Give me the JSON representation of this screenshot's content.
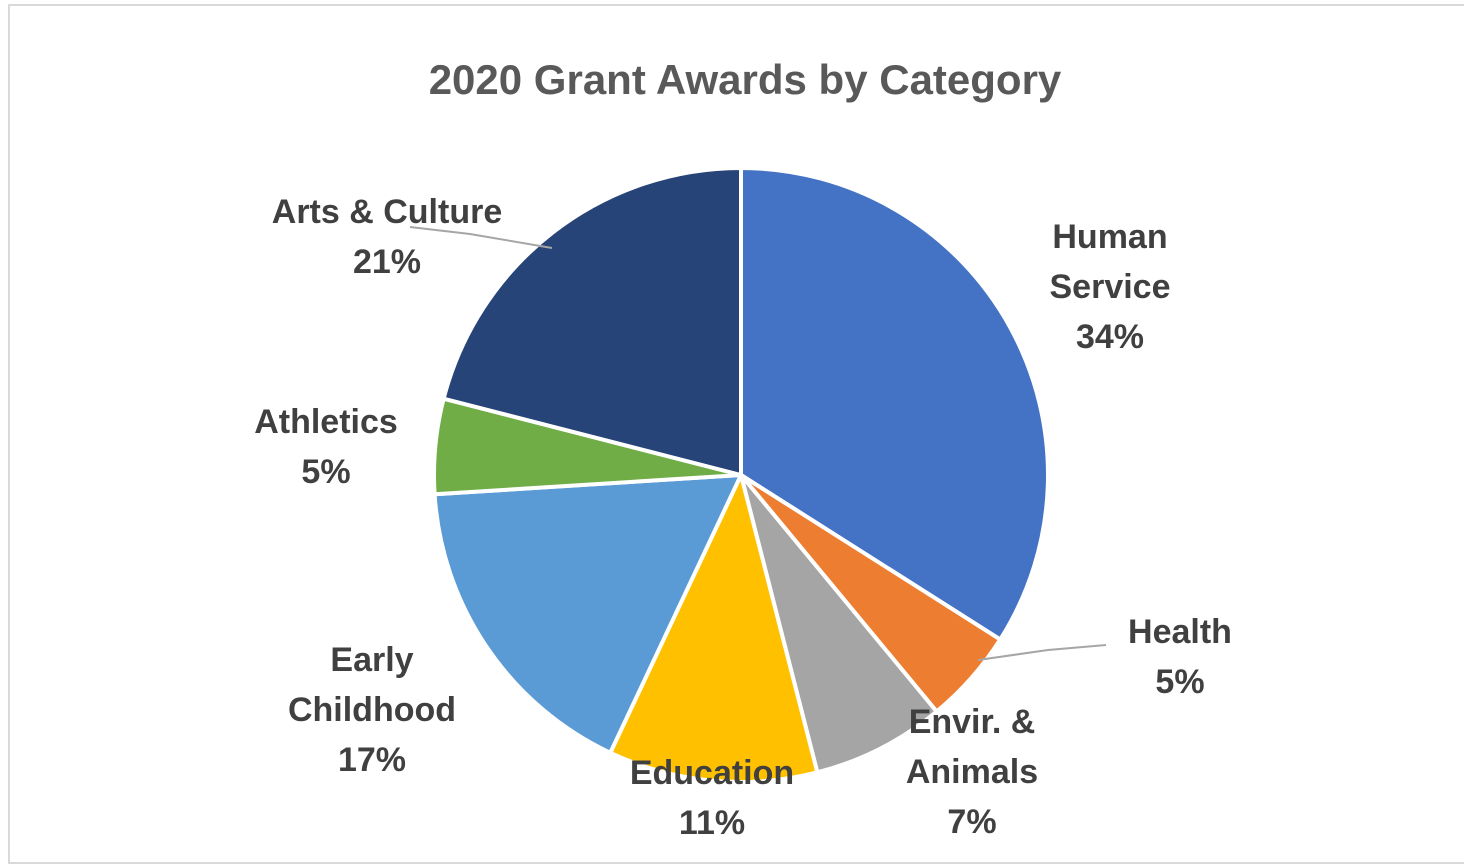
{
  "chart_data": {
    "type": "pie",
    "title": "2020 Grant Awards by Category",
    "slices": [
      {
        "label_lines": [
          "Human",
          "Service"
        ],
        "percent_text": "34%",
        "value": 34,
        "color": "#4472c4"
      },
      {
        "label_lines": [
          "Health"
        ],
        "percent_text": "5%",
        "value": 5,
        "color": "#ed7d31"
      },
      {
        "label_lines": [
          "Envir. &",
          "Animals"
        ],
        "percent_text": "7%",
        "value": 7,
        "color": "#a5a5a5"
      },
      {
        "label_lines": [
          "Education"
        ],
        "percent_text": "11%",
        "value": 11,
        "color": "#ffc000"
      },
      {
        "label_lines": [
          "Early",
          "Childhood"
        ],
        "percent_text": "17%",
        "value": 17,
        "color": "#5b9bd5"
      },
      {
        "label_lines": [
          "Athletics"
        ],
        "percent_text": "5%",
        "value": 5,
        "color": "#70ad47"
      },
      {
        "label_lines": [
          "Arts & Culture"
        ],
        "percent_text": "21%",
        "value": 21,
        "color": "#264478"
      }
    ]
  }
}
